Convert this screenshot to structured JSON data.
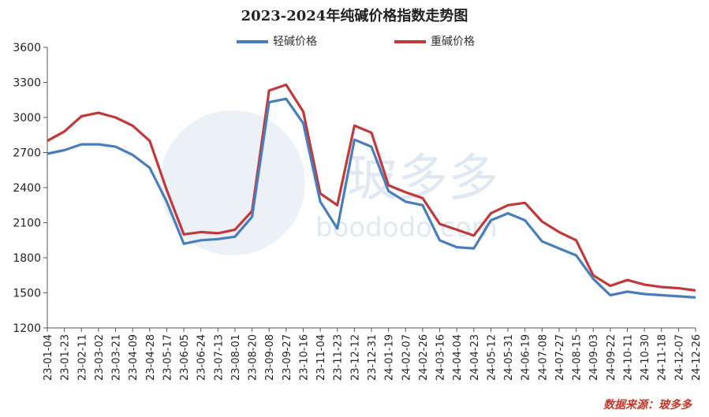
{
  "colors": {
    "light": "#4a7ebb",
    "heavy": "#c0393b",
    "axis": "#555555",
    "watermark": "#dde6f0"
  },
  "source_text": "数据来源：玻多多",
  "chart_data": {
    "type": "line",
    "title": "2023-2024年纯碱价格指数走势图",
    "xlabel": "",
    "ylabel": "",
    "ylim": [
      1200,
      3600
    ],
    "yticks": [
      1200,
      1500,
      1800,
      2100,
      2400,
      2700,
      3000,
      3300,
      3600
    ],
    "grid": false,
    "legend": "top",
    "watermark": {
      "cn": "玻多多",
      "en": "boododo.com"
    },
    "categories": [
      "23-01-04",
      "23-01-23",
      "23-02-11",
      "23-03-02",
      "23-03-21",
      "23-04-09",
      "23-04-28",
      "23-05-17",
      "23-06-05",
      "23-06-24",
      "23-07-13",
      "23-08-01",
      "23-08-20",
      "23-09-08",
      "23-09-27",
      "23-10-16",
      "23-11-04",
      "23-11-23",
      "23-12-12",
      "23-12-31",
      "24-01-19",
      "24-02-07",
      "24-02-26",
      "24-03-16",
      "24-04-04",
      "24-04-23",
      "24-05-12",
      "24-05-31",
      "24-06-19",
      "24-07-08",
      "24-07-27",
      "24-08-15",
      "24-09-03",
      "24-09-22",
      "24-10-11",
      "24-10-30",
      "24-11-18",
      "24-12-07",
      "24-12-26"
    ],
    "series": [
      {
        "name": "轻碱价格",
        "color": "#4a7ebb",
        "values": [
          2690,
          2720,
          2770,
          2770,
          2750,
          2680,
          2570,
          2280,
          1920,
          1950,
          1960,
          1980,
          2150,
          3130,
          3160,
          2950,
          2280,
          2050,
          2810,
          2750,
          2370,
          2280,
          2250,
          1950,
          1890,
          1880,
          2120,
          2180,
          2120,
          1940,
          1880,
          1820,
          1620,
          1480,
          1510,
          1490,
          1480,
          1470,
          1460
        ]
      },
      {
        "name": "重碱价格",
        "color": "#c0393b",
        "values": [
          2800,
          2880,
          3010,
          3040,
          3000,
          2930,
          2800,
          2380,
          2000,
          2020,
          2010,
          2040,
          2200,
          3230,
          3280,
          3050,
          2350,
          2250,
          2930,
          2870,
          2420,
          2360,
          2310,
          2090,
          2040,
          1990,
          2180,
          2250,
          2270,
          2110,
          2020,
          1950,
          1650,
          1560,
          1610,
          1570,
          1550,
          1540,
          1520
        ]
      }
    ]
  }
}
